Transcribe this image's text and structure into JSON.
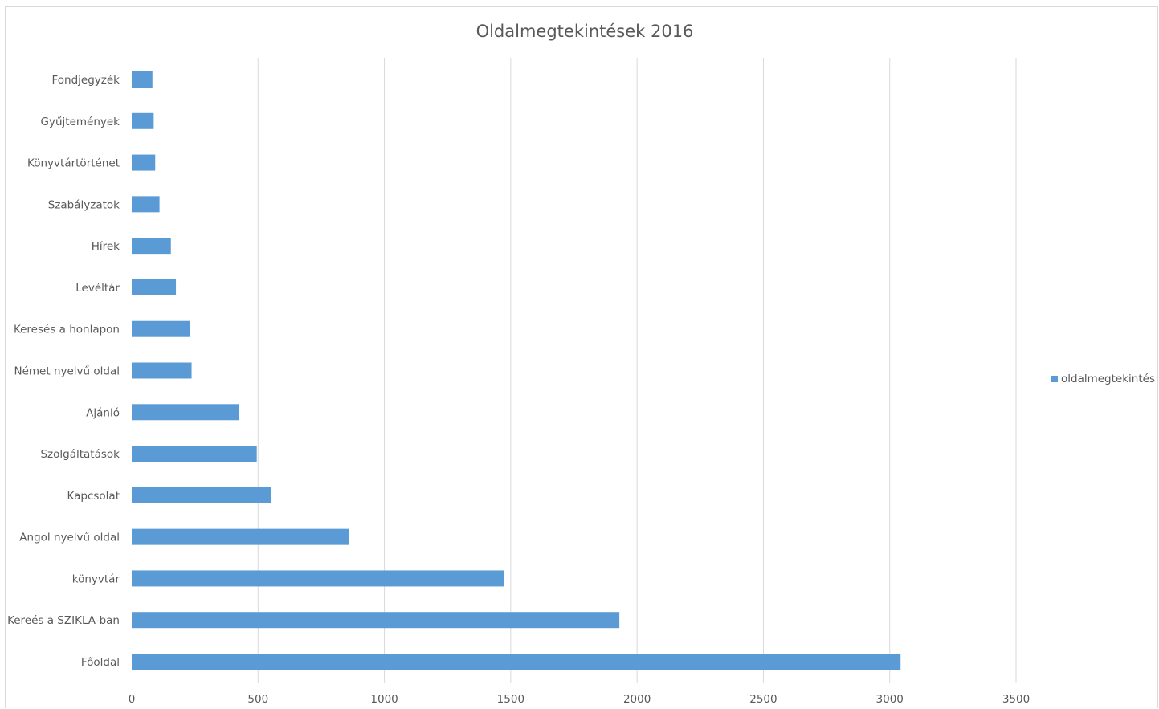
{
  "chart_data": {
    "type": "bar",
    "orientation": "horizontal",
    "title": "Oldalmegtekintések 2016",
    "xlabel": "",
    "ylabel": "",
    "categories": [
      "Fondjegyzék",
      "Gyűjtemények",
      "Könyvtártörténet",
      "Szabályzatok",
      "Hírek",
      "Levéltár",
      "Keresés a honlapon",
      "Német nyelvű oldal",
      "Ajánló",
      "Szolgáltatások",
      "Kapcsolat",
      "Angol nyelvű oldal",
      "könyvtár",
      "Kereés a SZIKLA-ban",
      "Főoldal"
    ],
    "series": [
      {
        "name": "oldalmegtekintés",
        "color": "#5b9bd5",
        "values": [
          82,
          87,
          93,
          110,
          155,
          175,
          230,
          237,
          425,
          495,
          553,
          860,
          1472,
          1930,
          3043
        ]
      }
    ],
    "xlim": [
      0,
      3500
    ],
    "xticks": [
      0,
      500,
      1000,
      1500,
      2000,
      2500,
      3000,
      3500
    ],
    "xtick_labels": [
      "0",
      "500",
      "1000",
      "1500",
      "2000",
      "2500",
      "3000",
      "3500"
    ],
    "grid": true,
    "legend_position": "right"
  }
}
